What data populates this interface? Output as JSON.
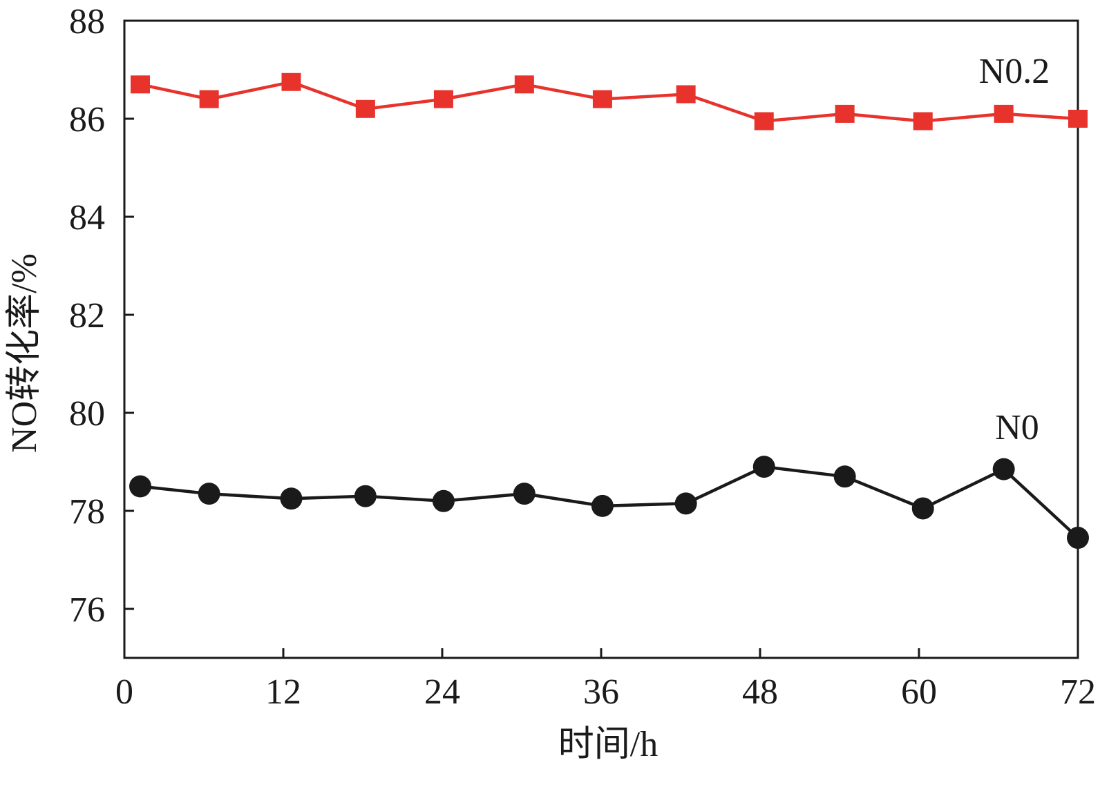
{
  "chart_data": {
    "type": "line",
    "xlabel": "时间/h",
    "ylabel": "NO转化率/%",
    "xlim": [
      0,
      72
    ],
    "ylim": [
      75,
      88
    ],
    "xticks": [
      0,
      12,
      24,
      36,
      48,
      60,
      72
    ],
    "yticks": [
      76,
      78,
      80,
      82,
      84,
      86,
      88
    ],
    "grid": false,
    "legend": "inline labels",
    "series": [
      {
        "name": "N0.2",
        "color": "#e8322c",
        "marker": "square",
        "x": [
          1.2,
          6.4,
          12.6,
          18.2,
          24.1,
          30.2,
          36.1,
          42.4,
          48.3,
          54.4,
          60.3,
          66.4,
          72
        ],
        "y": [
          86.7,
          86.4,
          86.75,
          86.2,
          86.4,
          86.7,
          86.4,
          86.5,
          85.95,
          86.1,
          85.95,
          86.1,
          86.0
        ]
      },
      {
        "name": "N0",
        "color": "#1a1a1a",
        "marker": "circle",
        "x": [
          1.2,
          6.4,
          12.6,
          18.2,
          24.1,
          30.2,
          36.1,
          42.4,
          48.3,
          54.4,
          60.3,
          66.4,
          72
        ],
        "y": [
          78.5,
          78.35,
          78.25,
          78.3,
          78.2,
          78.35,
          78.1,
          78.15,
          78.9,
          78.7,
          78.05,
          78.85,
          77.45
        ]
      }
    ]
  }
}
